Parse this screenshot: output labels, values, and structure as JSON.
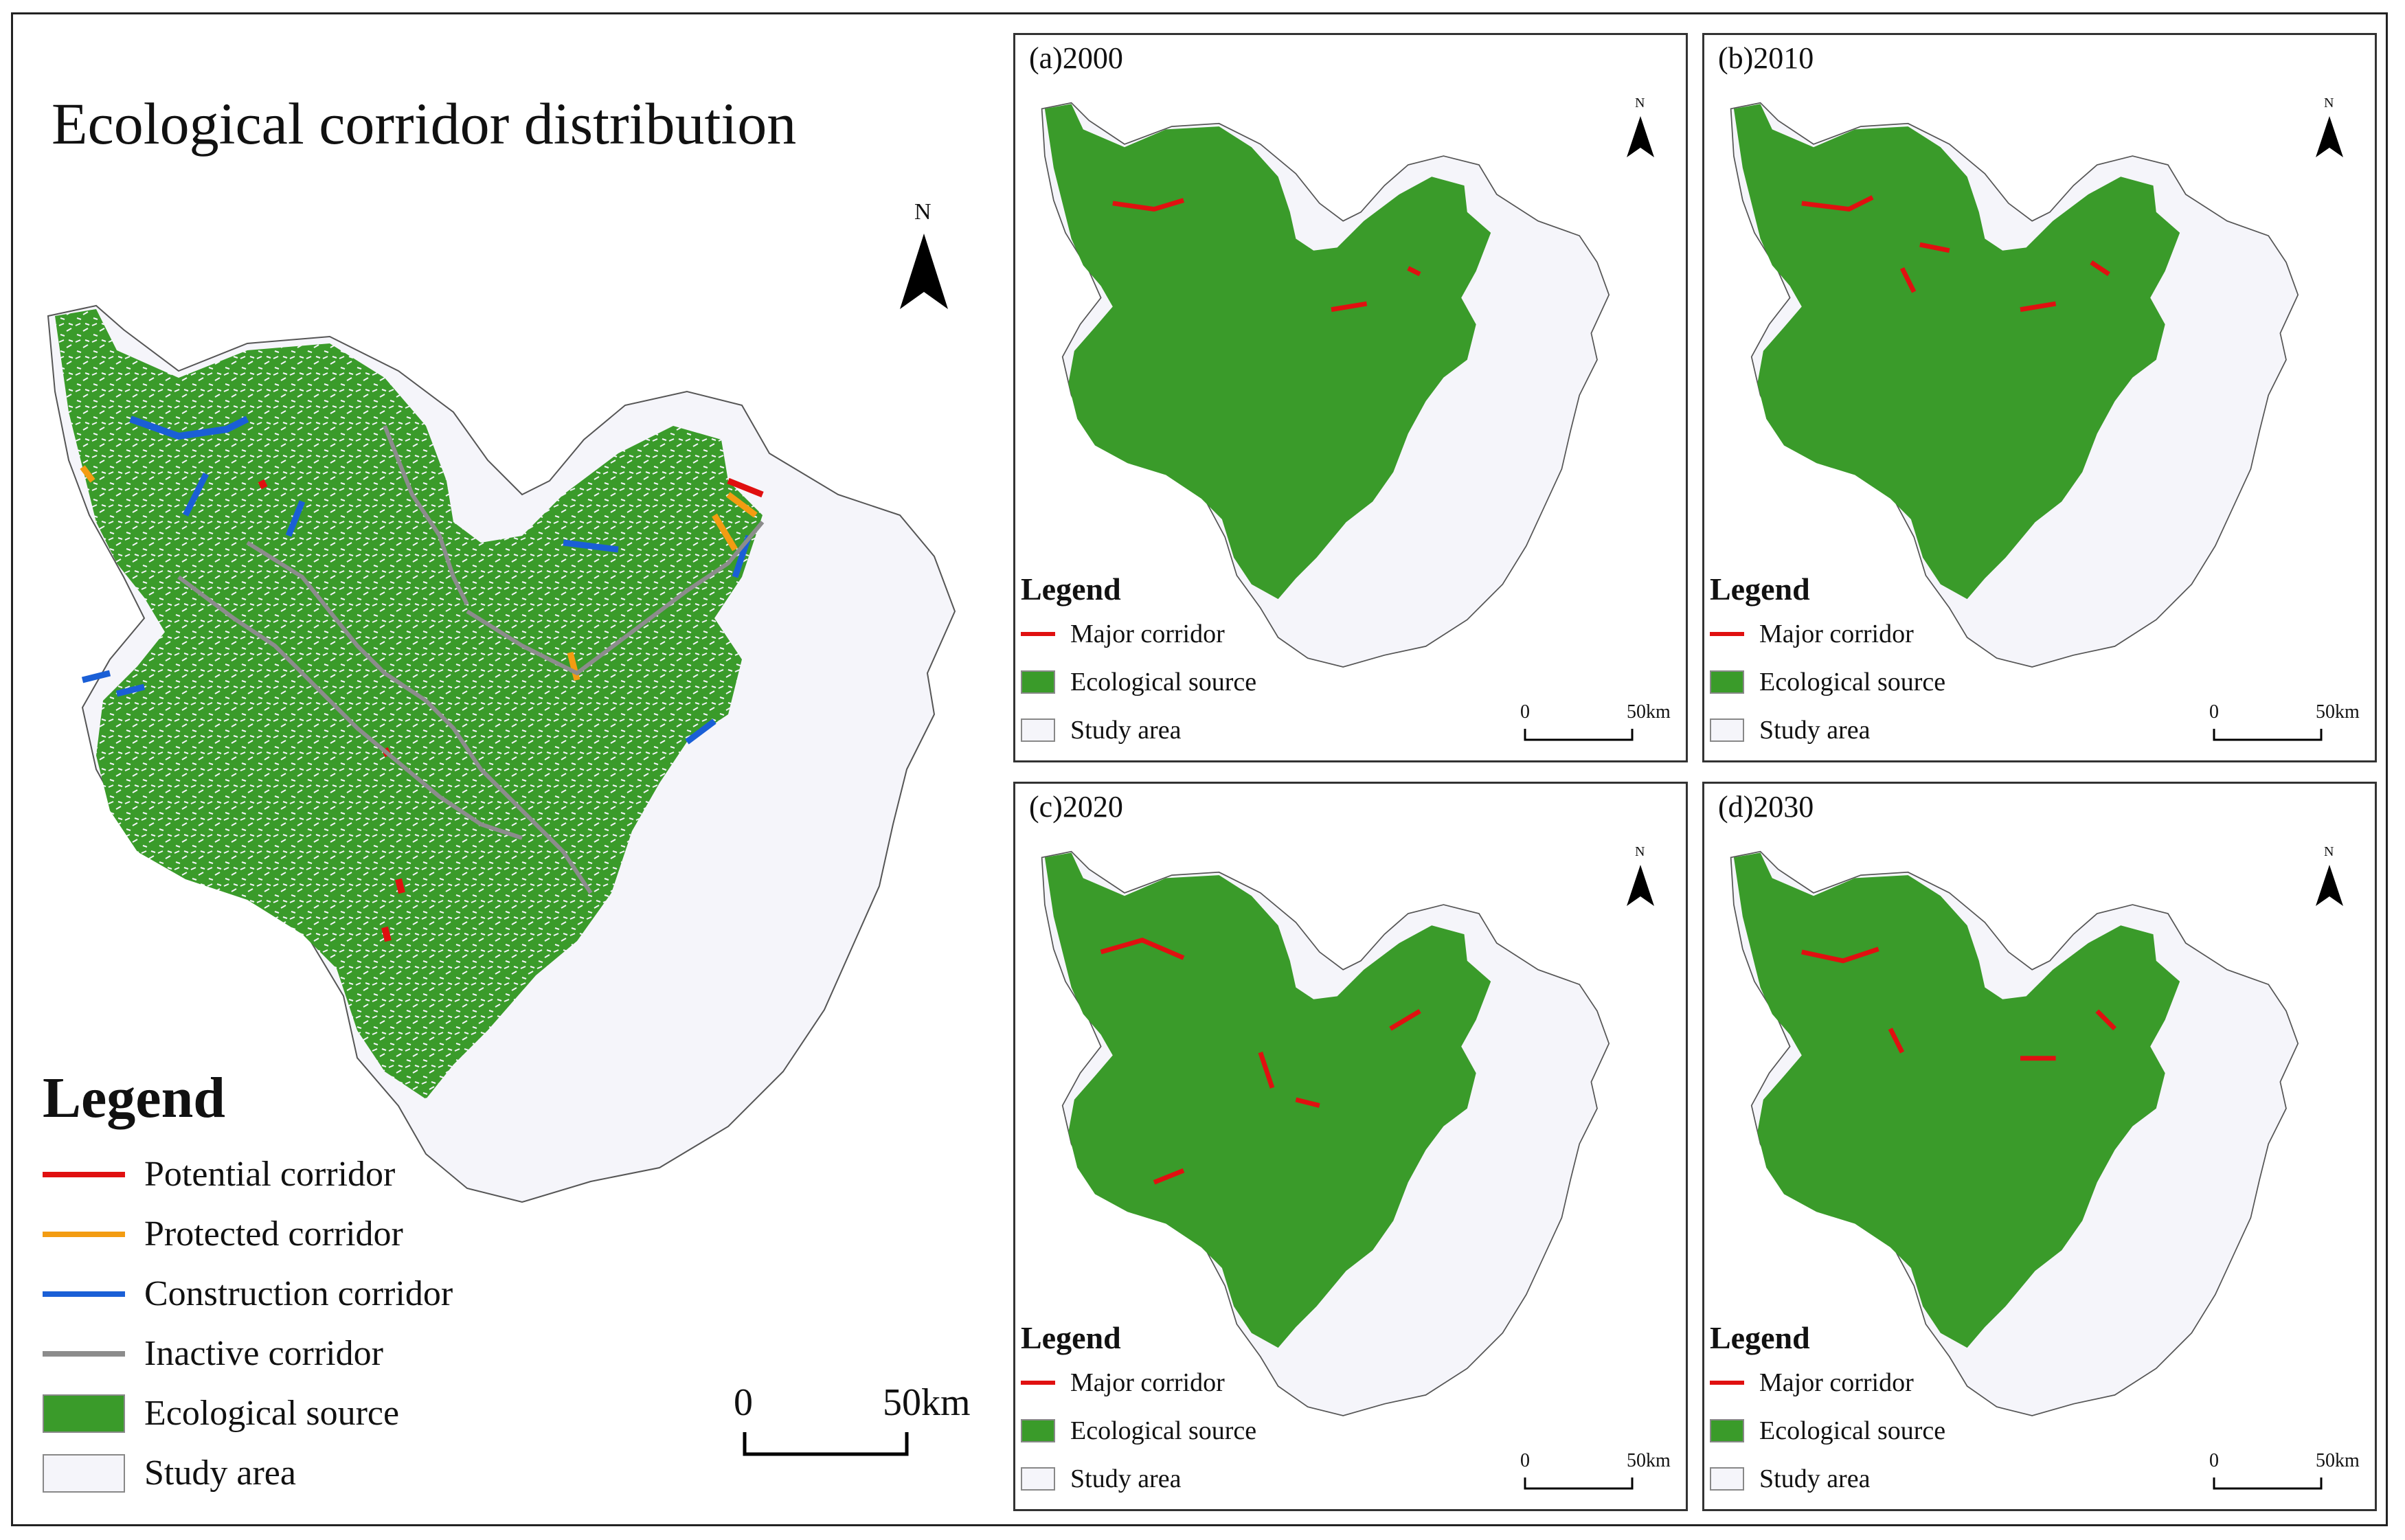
{
  "main": {
    "title": "Ecological corridor distribution",
    "north": "N",
    "legend_title": "Legend",
    "legend_items": [
      {
        "label": "Potential corridor",
        "color": "#e01010",
        "kind": "line"
      },
      {
        "label": "Protected corridor",
        "color": "#f39c12",
        "kind": "line"
      },
      {
        "label": "Construction corridor",
        "color": "#1a5fd6",
        "kind": "line"
      },
      {
        "label": "Inactive corridor",
        "color": "#8c8c8c",
        "kind": "line"
      },
      {
        "label": "Ecological source",
        "color": "#3a9b2a",
        "kind": "box"
      },
      {
        "label": "Study area",
        "color": "#f5f5fa",
        "kind": "box"
      }
    ],
    "scale_start": "0",
    "scale_end": "50km"
  },
  "panels": [
    {
      "label": "(a)2000"
    },
    {
      "label": "(b)2010"
    },
    {
      "label": "(c)2020"
    },
    {
      "label": "(d)2030"
    }
  ],
  "panel_legend": {
    "title": "Legend",
    "items": [
      {
        "label": "Major corridor",
        "color": "#e01010",
        "kind": "line"
      },
      {
        "label": "Ecological source",
        "color": "#3a9b2a",
        "kind": "box"
      },
      {
        "label": "Study area",
        "color": "#f5f5fa",
        "kind": "box"
      }
    ],
    "north": "N",
    "scale_start": "0",
    "scale_end": "50km"
  },
  "colors": {
    "source": "#3a9b2a",
    "study": "#f5f5fa",
    "potential": "#e01010",
    "protected": "#f39c12",
    "construction": "#1a5fd6",
    "inactive": "#8c8c8c"
  }
}
